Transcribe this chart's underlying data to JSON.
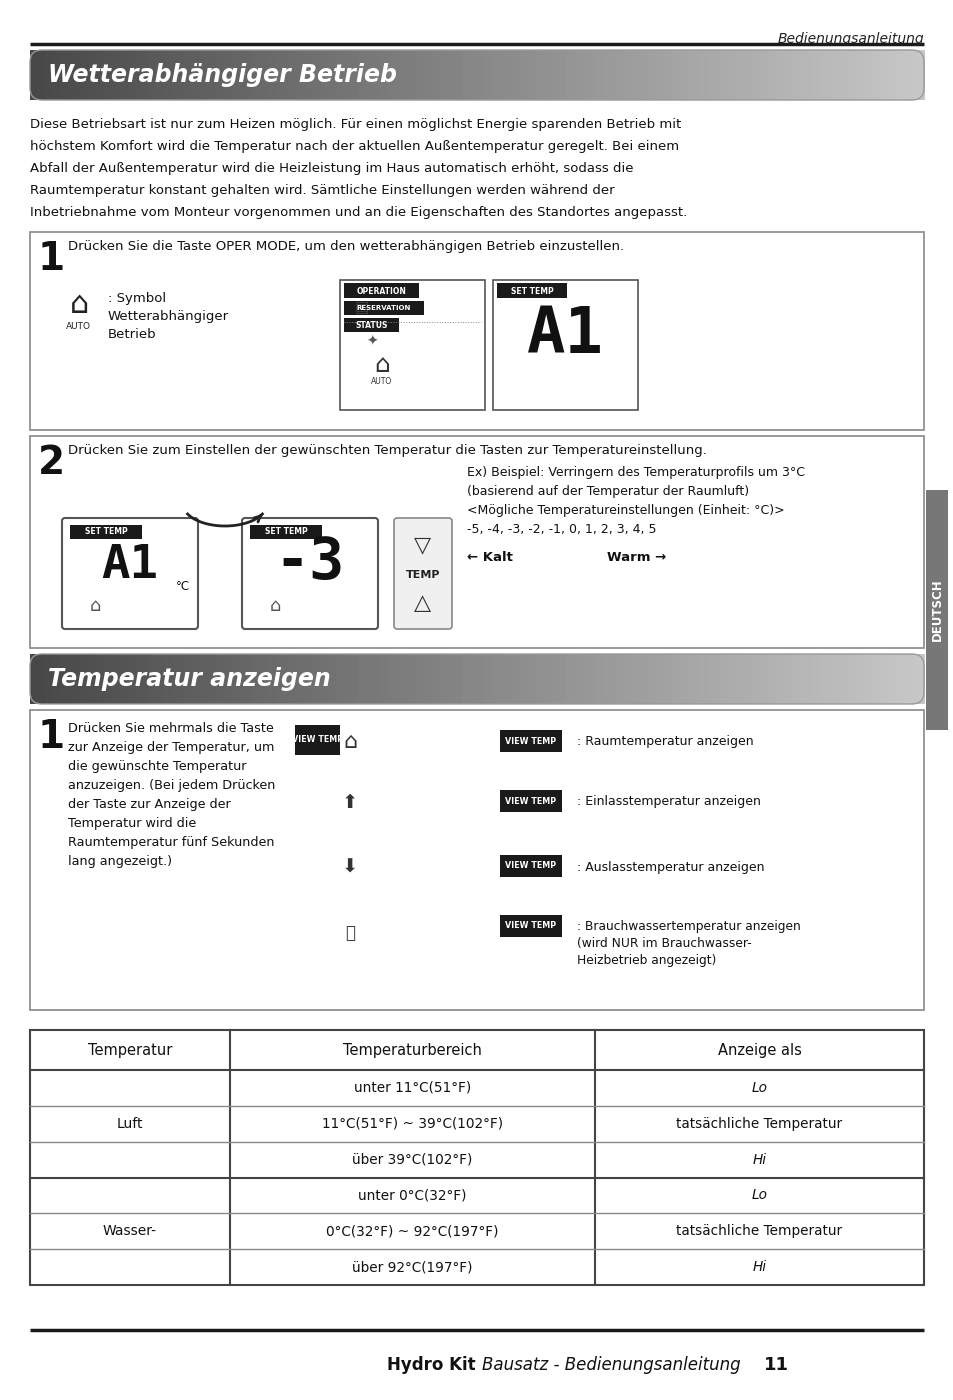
{
  "page_header": "Bedienungsanleitung",
  "section1_title": "Wetterabhängiger Betrieb",
  "section1_body": [
    "Diese Betriebsart ist nur zum Heizen möglich. Für einen möglichst Energie sparenden Betrieb mit",
    "höchstem Komfort wird die Temperatur nach der aktuellen Außentemperatur geregelt. Bei einem",
    "Abfall der Außentemperatur wird die Heizleistung im Haus automatisch erhöht, sodass die",
    "Raumtemperatur konstant gehalten wird. Sämtliche Einstellungen werden während der",
    "Inbetriebnahme vom Monteur vorgenommen und an die Eigenschaften des Standortes angepasst."
  ],
  "step1_text": "Drücken Sie die Taste OPER MODE, um den wetterabhängigen Betrieb einzustellen.",
  "step1_sub1": ": Symbol",
  "step1_sub2": "Wetterabhängiger",
  "step1_sub3": "Betrieb",
  "step2_text": "Drücken Sie zum Einstellen der gewünschten Temperatur die Tasten zur Temperatureinstellung.",
  "step2_ex_lines": [
    "Ex) Beispiel: Verringern des Temperaturprofils um 3°C",
    "(basierend auf der Temperatur der Raumluft)",
    "<Mögliche Temperatureinstellungen (Einheit: °C)>",
    "-5, -4, -3, -2, -1, 0, 1, 2, 3, 4, 5"
  ],
  "step2_kalt": "← Kalt",
  "step2_warm": "Warm →",
  "section2_title": "Temperatur anzeigen",
  "step3_body": [
    "Drücken Sie mehrmals die Taste",
    "zur Anzeige der Temperatur, um",
    "die gewünschte Temperatur",
    "anzuzeigen. (Bei jedem Drücken",
    "der Taste zur Anzeige der",
    "Temperatur wird die",
    "Raumtemperatur fünf Sekunden",
    "lang angezeigt.)"
  ],
  "step3_right": [
    [
      ": Raumtemperatur anzeigen"
    ],
    [
      ": Einlasstemperatur anzeigen"
    ],
    [
      ": Auslasstemperatur anzeigen"
    ],
    [
      ": Brauchwassertemperatur anzeigen",
      "(wird NUR im Brauchwasser-",
      "Heizbetrieb angezeigt)"
    ]
  ],
  "table_headers": [
    "Temperatur",
    "Temperaturbereich",
    "Anzeige als"
  ],
  "table_data": [
    [
      "",
      "unter 11°C(51°F)",
      "Lo",
      true
    ],
    [
      "Luft",
      "11°C(51°F) ~ 39°C(102°F)",
      "tatsächliche Temperatur",
      false
    ],
    [
      "",
      "über 39°C(102°F)",
      "Hi",
      true
    ],
    [
      "",
      "unter 0°C(32°F)",
      "Lo",
      true
    ],
    [
      "Wasser-",
      "0°C(32°F) ~ 92°C(197°F)",
      "tatsächliche Temperatur",
      false
    ],
    [
      "",
      "über 92°C(197°F)",
      "Hi",
      true
    ]
  ],
  "table_group_labels": [
    {
      "label": "Luft",
      "rows": [
        0,
        1,
        2
      ]
    },
    {
      "label": "Wasser-",
      "rows": [
        3,
        4,
        5
      ]
    }
  ],
  "footer_bold": "Hydro Kit",
  "footer_italic": "Bausatz - Bedienungsanleitung",
  "footer_num": "11",
  "sidebar": "DEUTSCH"
}
